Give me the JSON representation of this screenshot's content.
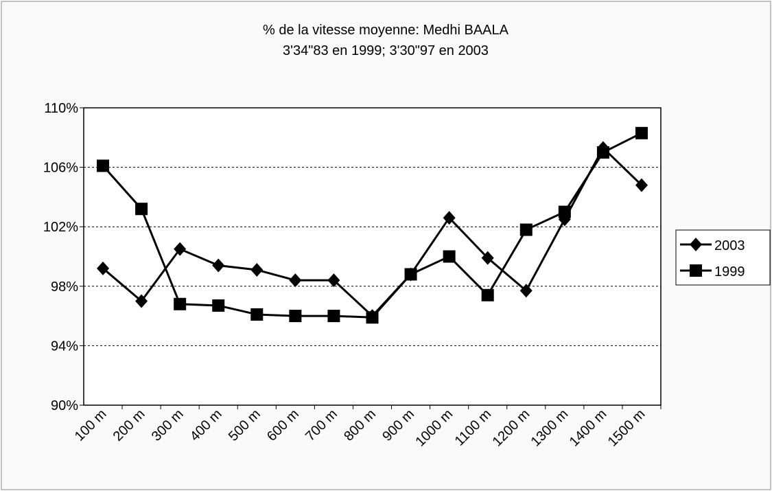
{
  "chart_data": {
    "type": "line",
    "title": "% de la vitesse moyenne: Medhi BAALA",
    "subtitle": "3'34\"83 en 1999; 3'30\"97 en 2003",
    "categories": [
      "100 m",
      "200 m",
      "300 m",
      "400 m",
      "500 m",
      "600 m",
      "700 m",
      "800 m",
      "900 m",
      "1000 m",
      "1100 m",
      "1200 m",
      "1300 m",
      "1400 m",
      "1500 m"
    ],
    "series": [
      {
        "name": "2003",
        "color": "#000000",
        "marker": "diamond",
        "values": [
          99.2,
          97.0,
          100.5,
          99.4,
          99.1,
          98.4,
          98.4,
          96.0,
          98.8,
          102.6,
          99.9,
          97.7,
          102.5,
          107.3,
          104.8
        ]
      },
      {
        "name": "1999",
        "color": "#000000",
        "marker": "square",
        "values": [
          106.1,
          103.2,
          96.8,
          96.7,
          96.1,
          96.0,
          96.0,
          95.9,
          98.8,
          100.0,
          97.4,
          101.8,
          103.0,
          107.0,
          108.3
        ]
      }
    ],
    "ylim": [
      90,
      110
    ],
    "yticks": [
      {
        "value": 90,
        "label": "90%"
      },
      {
        "value": 94,
        "label": "94%"
      },
      {
        "value": 98,
        "label": "98%"
      },
      {
        "value": 102,
        "label": "102%"
      },
      {
        "value": 106,
        "label": "106%"
      },
      {
        "value": 110,
        "label": "110%"
      }
    ],
    "grid": true,
    "legend": "right"
  }
}
